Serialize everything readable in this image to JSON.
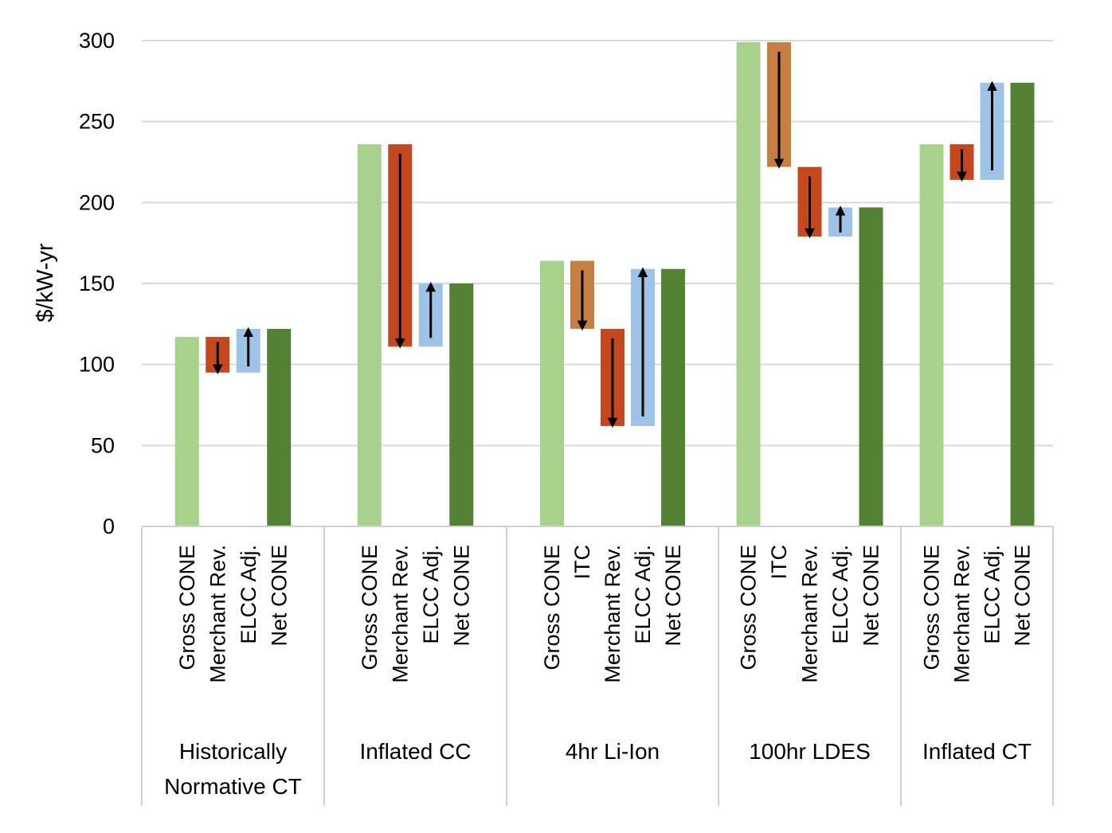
{
  "chart_data": {
    "type": "bar",
    "subtype": "waterfall",
    "title": "",
    "xlabel": "",
    "ylabel": "$/kW-yr",
    "ylim": [
      0,
      300
    ],
    "yticks": [
      0,
      50,
      100,
      150,
      200,
      250,
      300
    ],
    "grid": true,
    "colors": {
      "gross": "#a9d18e",
      "net": "#548235",
      "merchant": "#c5471e",
      "itc": "#c77e42",
      "elcc": "#9dc3e6",
      "arrow": "#000000"
    },
    "groups": [
      {
        "name": [
          "Historically",
          "Normative CT"
        ],
        "bars": [
          {
            "label": "Gross CONE",
            "kind": "gross",
            "from": 0,
            "to": 117
          },
          {
            "label": "Merchant Rev.",
            "kind": "merchant",
            "from": 117,
            "to": 95
          },
          {
            "label": "ELCC Adj.",
            "kind": "elcc",
            "from": 95,
            "to": 122
          },
          {
            "label": "Net CONE",
            "kind": "net",
            "from": 0,
            "to": 122
          }
        ]
      },
      {
        "name": [
          "Inflated CC"
        ],
        "bars": [
          {
            "label": "Gross CONE",
            "kind": "gross",
            "from": 0,
            "to": 236
          },
          {
            "label": "Merchant Rev.",
            "kind": "merchant",
            "from": 236,
            "to": 111
          },
          {
            "label": "ELCC Adj.",
            "kind": "elcc",
            "from": 111,
            "to": 150
          },
          {
            "label": "Net CONE",
            "kind": "net",
            "from": 0,
            "to": 150
          }
        ]
      },
      {
        "name": [
          "4hr Li-Ion"
        ],
        "bars": [
          {
            "label": "Gross CONE",
            "kind": "gross",
            "from": 0,
            "to": 164
          },
          {
            "label": "ITC",
            "kind": "itc",
            "from": 164,
            "to": 122
          },
          {
            "label": "Merchant Rev.",
            "kind": "merchant",
            "from": 122,
            "to": 62
          },
          {
            "label": "ELCC Adj.",
            "kind": "elcc",
            "from": 62,
            "to": 159
          },
          {
            "label": "Net CONE",
            "kind": "net",
            "from": 0,
            "to": 159
          }
        ]
      },
      {
        "name": [
          "100hr LDES"
        ],
        "bars": [
          {
            "label": "Gross CONE",
            "kind": "gross",
            "from": 0,
            "to": 299
          },
          {
            "label": "ITC",
            "kind": "itc",
            "from": 299,
            "to": 222
          },
          {
            "label": "Merchant Rev.",
            "kind": "merchant",
            "from": 222,
            "to": 179
          },
          {
            "label": "ELCC Adj.",
            "kind": "elcc",
            "from": 179,
            "to": 197
          },
          {
            "label": "Net CONE",
            "kind": "net",
            "from": 0,
            "to": 197
          }
        ]
      },
      {
        "name": [
          "Inflated CT"
        ],
        "bars": [
          {
            "label": "Gross CONE",
            "kind": "gross",
            "from": 0,
            "to": 236
          },
          {
            "label": "Merchant Rev.",
            "kind": "merchant",
            "from": 236,
            "to": 214
          },
          {
            "label": "ELCC Adj.",
            "kind": "elcc",
            "from": 214,
            "to": 274
          },
          {
            "label": "Net CONE",
            "kind": "net",
            "from": 0,
            "to": 274
          }
        ]
      }
    ]
  }
}
